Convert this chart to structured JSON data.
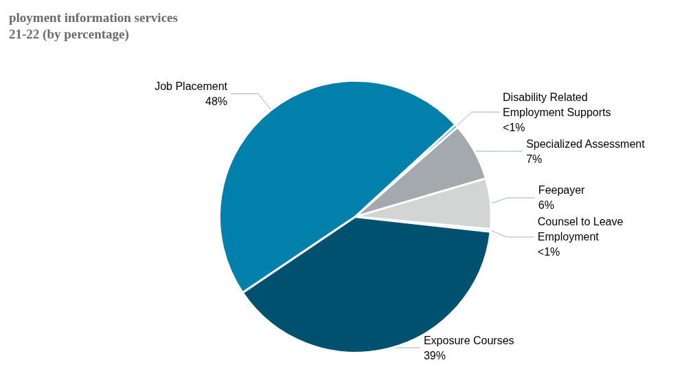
{
  "chart_data": {
    "type": "pie",
    "title": "ployment information services\n21-22 (by percentage)",
    "categories": [
      "Job Placement",
      "Disability Related Employment Supports",
      "Specialized Assessment",
      "Feepayer",
      "Counsel to Leave Employment",
      "Exposure Courses"
    ],
    "values": [
      47.6,
      0.4,
      6.9,
      6.0,
      0.3,
      38.8
    ],
    "value_labels": [
      "48%",
      "<1%",
      "7%",
      "6%",
      "<1%",
      "39%"
    ],
    "colors": [
      "#0080aa",
      "#4aa8d0",
      "#a3a9ac",
      "#d3d5d5",
      "#9fd0e6",
      "#005070"
    ],
    "legend": false
  }
}
